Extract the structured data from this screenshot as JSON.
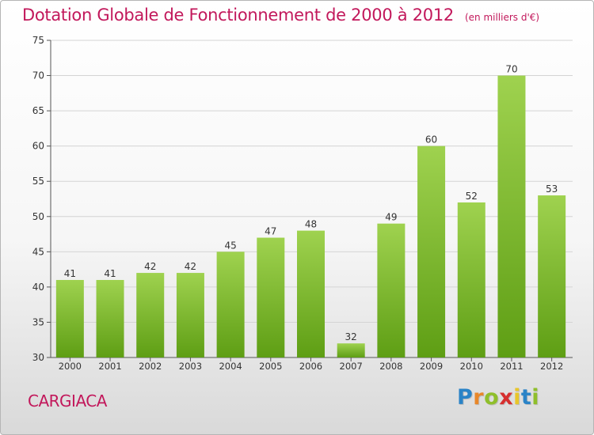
{
  "commune": "CARGIACA",
  "logo": {
    "letters": [
      "P",
      "r",
      "o",
      "x",
      "i",
      "t",
      "i"
    ],
    "colors": [
      "#2a83c7",
      "#e8872a",
      "#8fbf2b",
      "#d62f2f",
      "#e8c62a",
      "#2a83c7",
      "#8fbf2b"
    ]
  },
  "colors": {
    "title": "#c2185b",
    "bar_top": "#9fd24f",
    "bar_bottom": "#5e9e14",
    "grid": "#d4d4d4",
    "axis": "#555555"
  },
  "chart_data": {
    "type": "bar",
    "title": "Dotation Globale de Fonctionnement de 2000 à 2012",
    "subtitle": "(en milliers d'€)",
    "xlabel": "",
    "ylabel": "",
    "categories": [
      "2000",
      "2001",
      "2002",
      "2003",
      "2004",
      "2005",
      "2006",
      "2007",
      "2008",
      "2009",
      "2010",
      "2011",
      "2012"
    ],
    "values": [
      41,
      41,
      42,
      42,
      45,
      47,
      48,
      32,
      49,
      60,
      52,
      70,
      53
    ],
    "ylim": [
      30,
      75
    ],
    "yticks": [
      30,
      35,
      40,
      45,
      50,
      55,
      60,
      65,
      70,
      75
    ],
    "grid": true
  }
}
